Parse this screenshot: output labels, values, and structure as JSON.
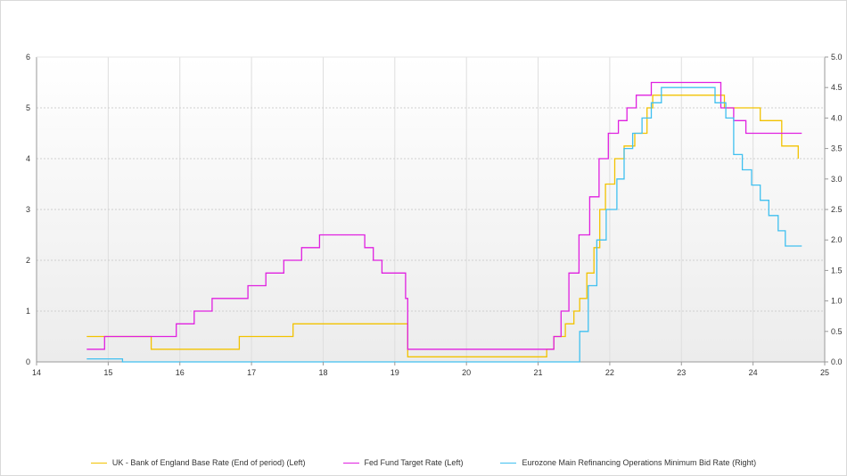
{
  "chart_data": {
    "type": "line",
    "x_ticks": [
      "14",
      "15",
      "16",
      "17",
      "18",
      "19",
      "20",
      "21",
      "22",
      "23",
      "24",
      "25"
    ],
    "xlim": [
      14,
      25
    ],
    "ylim_left": [
      0,
      6
    ],
    "y_ticks_left": [
      "0",
      "1",
      "2",
      "3",
      "4",
      "5",
      "6"
    ],
    "ylim_right": [
      0,
      5
    ],
    "y_ticks_right": [
      "0.0",
      "0.5",
      "1.0",
      "1.5",
      "2.0",
      "2.5",
      "3.0",
      "3.5",
      "4.0",
      "4.5",
      "5.0"
    ],
    "grid": true,
    "legend_position": "bottom",
    "series": [
      {
        "name": "UK - Bank of England Base Rate (End of period) (Left)",
        "axis": "left",
        "color": "#f2c200",
        "step": true,
        "x": [
          14.7,
          15.6,
          16.83,
          17.58,
          19.18,
          20.95,
          21.12,
          21.22,
          21.38,
          21.5,
          21.58,
          21.68,
          21.78,
          21.86,
          21.94,
          22.07,
          22.2,
          22.35,
          22.52,
          22.6,
          22.7,
          23.6,
          23.75,
          24.1,
          24.4,
          24.63
        ],
        "y": [
          0.5,
          0.25,
          0.5,
          0.75,
          0.1,
          0.1,
          0.25,
          0.5,
          0.75,
          1.0,
          1.25,
          1.75,
          2.25,
          3.0,
          3.5,
          4.0,
          4.25,
          4.5,
          5.0,
          5.25,
          5.25,
          5.0,
          5.0,
          4.75,
          4.25,
          4.0
        ]
      },
      {
        "name": "Fed Fund Target Rate (Left)",
        "axis": "left",
        "color": "#e020e0",
        "step": true,
        "x": [
          14.7,
          14.95,
          15.95,
          16.2,
          16.45,
          16.95,
          17.2,
          17.45,
          17.7,
          17.95,
          18.58,
          18.7,
          18.82,
          19.15,
          19.18,
          21.22,
          21.32,
          21.43,
          21.57,
          21.72,
          21.85,
          21.98,
          22.12,
          22.24,
          22.37,
          22.58,
          23.55,
          23.73,
          23.9,
          24.68
        ],
        "y": [
          0.25,
          0.5,
          0.75,
          1.0,
          1.25,
          1.5,
          1.75,
          2.0,
          2.25,
          2.5,
          2.25,
          2.0,
          1.75,
          1.25,
          0.25,
          0.5,
          1.0,
          1.75,
          2.5,
          3.25,
          4.0,
          4.5,
          4.75,
          5.0,
          5.25,
          5.5,
          5.0,
          4.75,
          4.5,
          4.5
        ]
      },
      {
        "name": "Eurozone Main Refinancing Operations Minimum Bid Rate (Right)",
        "axis": "right",
        "color": "#40c0f0",
        "step": true,
        "x": [
          14.7,
          15.2,
          21.58,
          21.7,
          21.82,
          21.95,
          22.1,
          22.2,
          22.32,
          22.45,
          22.58,
          22.72,
          23.47,
          23.62,
          23.73,
          23.85,
          23.98,
          24.1,
          24.22,
          24.35,
          24.45,
          24.68
        ],
        "y": [
          0.05,
          0.0,
          0.5,
          1.25,
          2.0,
          2.5,
          3.0,
          3.5,
          3.75,
          4.0,
          4.25,
          4.5,
          4.25,
          4.0,
          3.4,
          3.15,
          2.9,
          2.65,
          2.4,
          2.15,
          1.9,
          1.9
        ]
      }
    ]
  }
}
